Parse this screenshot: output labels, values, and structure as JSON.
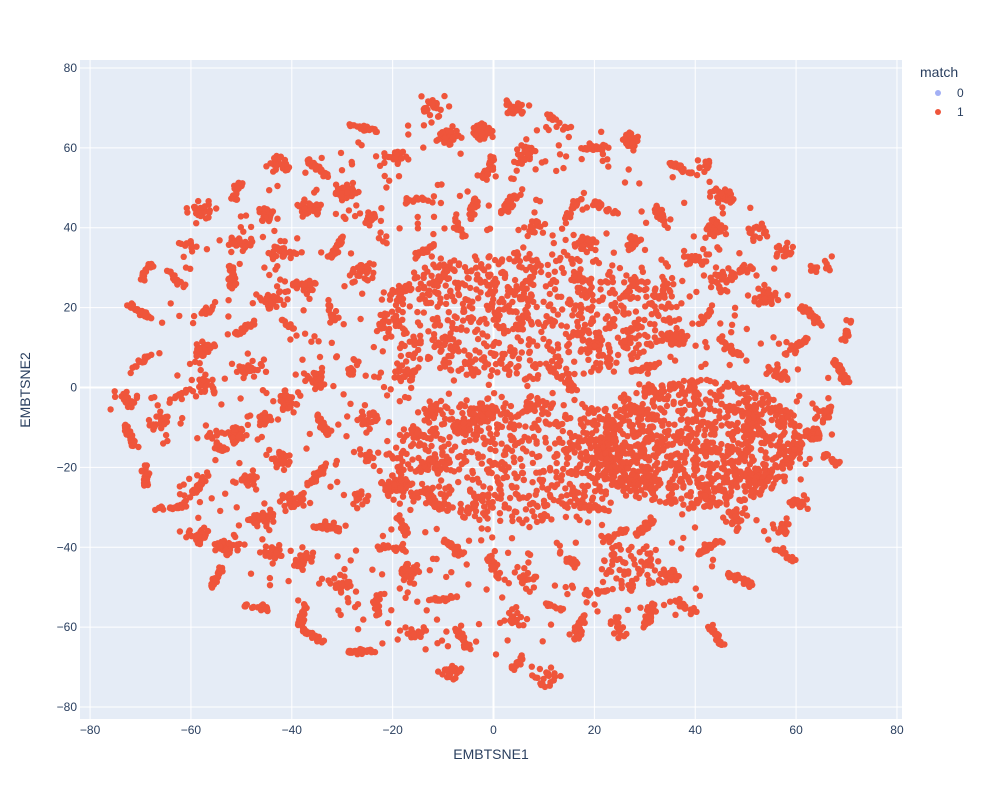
{
  "chart_data": {
    "type": "scatter",
    "title": "",
    "xlabel": "EMBTSNE1",
    "ylabel": "EMBTSNE2",
    "xlim": [
      -82,
      81
    ],
    "ylim": [
      -83,
      82
    ],
    "x_ticks": [
      -80,
      -60,
      -40,
      -20,
      0,
      20,
      40,
      60,
      80
    ],
    "y_ticks": [
      -80,
      -60,
      -40,
      -20,
      0,
      20,
      40,
      60,
      80
    ],
    "x_tick_labels": [
      "−80",
      "−60",
      "−40",
      "−20",
      "0",
      "20",
      "40",
      "60",
      "80"
    ],
    "y_tick_labels": [
      "−80",
      "−60",
      "−40",
      "−20",
      "0",
      "20",
      "40",
      "60",
      "80"
    ],
    "grid": true,
    "legend": {
      "title": "match",
      "placement": "top-right"
    },
    "series": [
      {
        "name": "0",
        "color": "#a3b0f5",
        "clusters": []
      },
      {
        "name": "1",
        "color": "#ef553b",
        "dense_regions": [
          {
            "cx": 6,
            "cy": 18,
            "rx": 30,
            "ry": 16,
            "n": 700
          },
          {
            "cx": 5,
            "cy": -18,
            "rx": 26,
            "ry": 16,
            "n": 600
          },
          {
            "cx": 40,
            "cy": -14,
            "rx": 22,
            "ry": 16,
            "n": 900
          },
          {
            "cx": 27,
            "cy": -45,
            "rx": 6,
            "ry": 6,
            "n": 60
          }
        ],
        "clusters": [
          [
            -73,
            -3
          ],
          [
            -70,
            19
          ],
          [
            -70,
            6
          ],
          [
            -69,
            -22
          ],
          [
            -69,
            29
          ],
          [
            -66,
            -9
          ],
          [
            -64,
            -30
          ],
          [
            -63,
            27
          ],
          [
            -60,
            35
          ],
          [
            -59,
            -37
          ],
          [
            -58,
            9
          ],
          [
            -58,
            44
          ],
          [
            -58,
            -24
          ],
          [
            -57,
            19
          ],
          [
            -57,
            0
          ],
          [
            -55,
            -14
          ],
          [
            -55,
            -48
          ],
          [
            -53,
            -40
          ],
          [
            -52,
            28
          ],
          [
            -51,
            49
          ],
          [
            -51,
            -12
          ],
          [
            -50,
            36
          ],
          [
            -49,
            -23
          ],
          [
            -49,
            15
          ],
          [
            -48,
            5
          ],
          [
            -47,
            -55
          ],
          [
            -46,
            -33
          ],
          [
            -45,
            43
          ],
          [
            -45,
            -8
          ],
          [
            -44,
            -42
          ],
          [
            -44,
            22
          ],
          [
            -43,
            56
          ],
          [
            -42,
            -18
          ],
          [
            -42,
            34
          ],
          [
            -41,
            -3
          ],
          [
            -40,
            15
          ],
          [
            -40,
            -28
          ],
          [
            -38,
            -57
          ],
          [
            -38,
            -43
          ],
          [
            -37,
            26
          ],
          [
            -37,
            45
          ],
          [
            -36,
            -62
          ],
          [
            -35,
            55
          ],
          [
            -35,
            2
          ],
          [
            -35,
            -22
          ],
          [
            -34,
            -9
          ],
          [
            -33,
            -35
          ],
          [
            -32,
            18
          ],
          [
            -31,
            35
          ],
          [
            -30,
            -49
          ],
          [
            -29,
            49
          ],
          [
            -28,
            5
          ],
          [
            -27,
            -28
          ],
          [
            -26,
            65
          ],
          [
            -26,
            -66
          ],
          [
            -26,
            29
          ],
          [
            -25,
            -8
          ],
          [
            -25,
            -17
          ],
          [
            -24,
            42
          ],
          [
            -23,
            -55
          ],
          [
            -22,
            16
          ],
          [
            -21,
            -40
          ],
          [
            -20,
            -25
          ],
          [
            -19,
            58
          ],
          [
            -19,
            24
          ],
          [
            -18,
            -35
          ],
          [
            -17,
            4
          ],
          [
            -17,
            -46
          ],
          [
            -16,
            -12
          ],
          [
            -15,
            47
          ],
          [
            -15,
            -62
          ],
          [
            -14,
            34
          ],
          [
            -13,
            -19
          ],
          [
            -12,
            70
          ],
          [
            -12,
            -5
          ],
          [
            -12,
            -28
          ],
          [
            -10,
            -53
          ],
          [
            -9,
            63
          ],
          [
            -9,
            11
          ],
          [
            -8,
            -71
          ],
          [
            -8,
            -40
          ],
          [
            -7,
            40
          ],
          [
            -6,
            -10
          ],
          [
            -6,
            -63
          ],
          [
            -4,
            45
          ],
          [
            -3,
            -29
          ],
          [
            -2,
            64
          ],
          [
            -1,
            55
          ],
          [
            0,
            -45
          ],
          [
            3,
            46
          ],
          [
            4,
            70
          ],
          [
            4,
            -58
          ],
          [
            5,
            -69
          ],
          [
            6,
            58
          ],
          [
            7,
            -48
          ],
          [
            8,
            40
          ],
          [
            10,
            -73
          ],
          [
            12,
            -55
          ],
          [
            13,
            66
          ],
          [
            15,
            -43
          ],
          [
            16,
            45
          ],
          [
            17,
            -60
          ],
          [
            18,
            36
          ],
          [
            20,
            60
          ],
          [
            20,
            -30
          ],
          [
            21,
            -51
          ],
          [
            22,
            45
          ],
          [
            24,
            -37
          ],
          [
            25,
            -60
          ],
          [
            27,
            25
          ],
          [
            27,
            62
          ],
          [
            28,
            36
          ],
          [
            29,
            -6
          ],
          [
            30,
            -35
          ],
          [
            30,
            5
          ],
          [
            31,
            -57
          ],
          [
            33,
            43
          ],
          [
            34,
            25
          ],
          [
            35,
            -47
          ],
          [
            36,
            12
          ],
          [
            37,
            55
          ],
          [
            38,
            -55
          ],
          [
            40,
            32
          ],
          [
            41,
            -28
          ],
          [
            42,
            18
          ],
          [
            42,
            56
          ],
          [
            43,
            -40
          ],
          [
            44,
            40
          ],
          [
            45,
            27
          ],
          [
            46,
            48
          ],
          [
            47,
            10
          ],
          [
            48,
            -33
          ],
          [
            49,
            -48
          ],
          [
            50,
            29
          ],
          [
            51,
            -8
          ],
          [
            52,
            39
          ],
          [
            53,
            -23
          ],
          [
            54,
            23
          ],
          [
            56,
            4
          ],
          [
            57,
            -35
          ],
          [
            58,
            34
          ],
          [
            59,
            -17
          ],
          [
            60,
            10
          ],
          [
            61,
            -29
          ],
          [
            63,
            18
          ],
          [
            64,
            -12
          ],
          [
            65,
            30
          ],
          [
            66,
            -6
          ],
          [
            67,
            -18
          ],
          [
            69,
            4
          ],
          [
            70,
            14
          ],
          [
            -72,
            -12
          ],
          [
            -62,
            -2
          ],
          [
            -10,
            28
          ],
          [
            -2,
            -7
          ],
          [
            14,
            2
          ],
          [
            20,
            12
          ],
          [
            31,
            -22
          ],
          [
            44,
            -62
          ],
          [
            58,
            -42
          ]
        ]
      }
    ]
  }
}
